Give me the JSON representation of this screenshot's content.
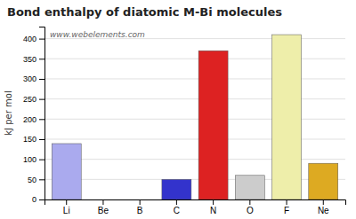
{
  "chart_data": {
    "type": "bar",
    "title": "Bond enthalpy of diatomic M-Bi molecules",
    "ylabel": "kJ per mol",
    "annotations": [
      "www.webelements.com"
    ],
    "categories": [
      "Li",
      "Be",
      "B",
      "C",
      "N",
      "O",
      "F",
      "Ne"
    ],
    "values": [
      139,
      0,
      0,
      50,
      370,
      60,
      410,
      90
    ],
    "colors": [
      "#aaaaee",
      "#cc6633",
      "#cccccc",
      "#3333cc",
      "#dd2222",
      "#cccccc",
      "#eeeeaa",
      "#ddaa22"
    ],
    "ylim": [
      0,
      430
    ],
    "yticks": [
      0,
      50,
      100,
      150,
      200,
      250,
      300,
      350,
      400
    ],
    "grid": true
  }
}
